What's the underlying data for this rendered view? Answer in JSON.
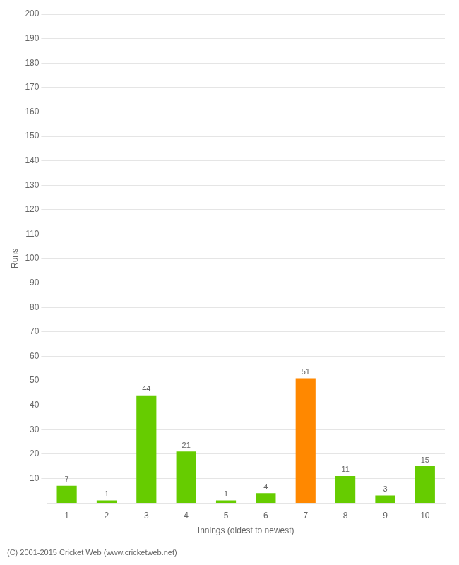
{
  "chart_data": {
    "type": "bar",
    "categories": [
      "1",
      "2",
      "3",
      "4",
      "5",
      "6",
      "7",
      "8",
      "9",
      "10"
    ],
    "values": [
      7,
      1,
      44,
      21,
      1,
      4,
      51,
      11,
      3,
      15
    ],
    "colors": [
      "#66cc00",
      "#66cc00",
      "#66cc00",
      "#66cc00",
      "#66cc00",
      "#66cc00",
      "#ff8800",
      "#66cc00",
      "#66cc00",
      "#66cc00"
    ],
    "xlabel": "Innings (oldest to newest)",
    "ylabel": "Runs",
    "ylim": [
      0,
      200
    ],
    "yticks": [
      10,
      20,
      30,
      40,
      50,
      60,
      70,
      80,
      90,
      100,
      110,
      120,
      130,
      140,
      150,
      160,
      170,
      180,
      190,
      200
    ],
    "grid": true,
    "data_labels": true,
    "annotations": [
      "(C) 2001-2015 Cricket Web (www.cricketweb.net)"
    ]
  }
}
